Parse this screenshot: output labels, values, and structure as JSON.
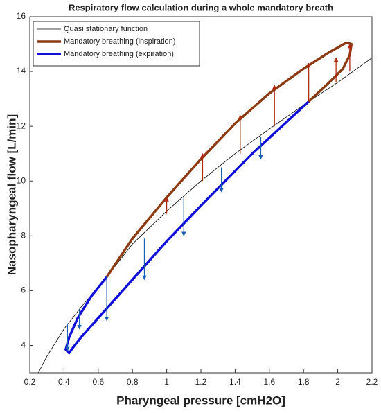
{
  "chart_data": {
    "type": "line",
    "title": "Respiratory flow calculation during a whole mandatory breath",
    "x_label": "Pharyngeal pressure [cmH2O]",
    "y_label": "Nasopharyngeal flow [L/min]",
    "xlim": [
      0.2,
      2.2
    ],
    "xticks": [
      0.2,
      0.4,
      0.6,
      0.8,
      1,
      1.2,
      1.4,
      1.6,
      1.8,
      2,
      2.2
    ],
    "ylim": [
      3,
      16
    ],
    "yticks": [
      4,
      6,
      8,
      10,
      12,
      14,
      16
    ],
    "series": [
      {
        "name": "Quasi stationary function",
        "color": "#000000",
        "width": 0.8,
        "x": [
          0.25,
          0.3,
          0.4,
          0.5,
          0.65,
          0.8,
          1.0,
          1.2,
          1.4,
          1.6,
          1.83,
          2.0,
          2.2
        ],
        "values": [
          3.0,
          3.6,
          4.6,
          5.4,
          6.5,
          7.7,
          8.9,
          10.0,
          11.0,
          11.9,
          12.9,
          13.6,
          14.5
        ]
      },
      {
        "name": "Mandatory breathing (inspiration)",
        "color": "#8b3a12",
        "width": 3.5,
        "x": [
          0.65,
          0.8,
          1.0,
          1.2,
          1.4,
          1.6,
          1.8,
          1.95,
          2.05,
          2.08,
          2.07,
          2.03,
          1.95,
          1.83
        ],
        "values": [
          6.5,
          7.9,
          9.4,
          10.8,
          12.1,
          13.2,
          14.1,
          14.7,
          15.05,
          15.0,
          14.6,
          14.1,
          13.6,
          12.9
        ]
      },
      {
        "name": "Mandatory breathing (expiration)",
        "color": "#1010d8",
        "width": 3.5,
        "x": [
          1.83,
          1.5,
          1.2,
          1.0,
          0.8,
          0.6,
          0.5,
          0.45,
          0.43,
          0.41,
          0.43,
          0.48,
          0.56,
          0.65
        ],
        "values": [
          12.9,
          11.0,
          9.1,
          7.8,
          6.4,
          5.0,
          4.3,
          3.9,
          3.72,
          3.85,
          4.3,
          5.0,
          5.8,
          6.5
        ]
      }
    ],
    "inspiration_arrows": {
      "color": "#b02a10",
      "x": [
        1.0,
        1.21,
        1.43,
        1.63,
        1.83,
        1.99,
        2.07
      ],
      "from": [
        8.8,
        10.0,
        11.0,
        12.0,
        12.9,
        13.6,
        14.0
      ],
      "to": [
        9.4,
        11.0,
        12.4,
        13.5,
        14.3,
        14.5,
        15.0
      ]
    },
    "expiration_arrows": {
      "color": "#1a5fb4",
      "x": [
        0.42,
        0.49,
        0.65,
        0.87,
        1.1,
        1.32,
        1.55
      ],
      "from": [
        4.8,
        5.3,
        6.5,
        7.9,
        9.4,
        10.5,
        11.6
      ],
      "to": [
        3.8,
        4.6,
        4.9,
        6.4,
        8.0,
        9.6,
        10.8
      ]
    }
  }
}
